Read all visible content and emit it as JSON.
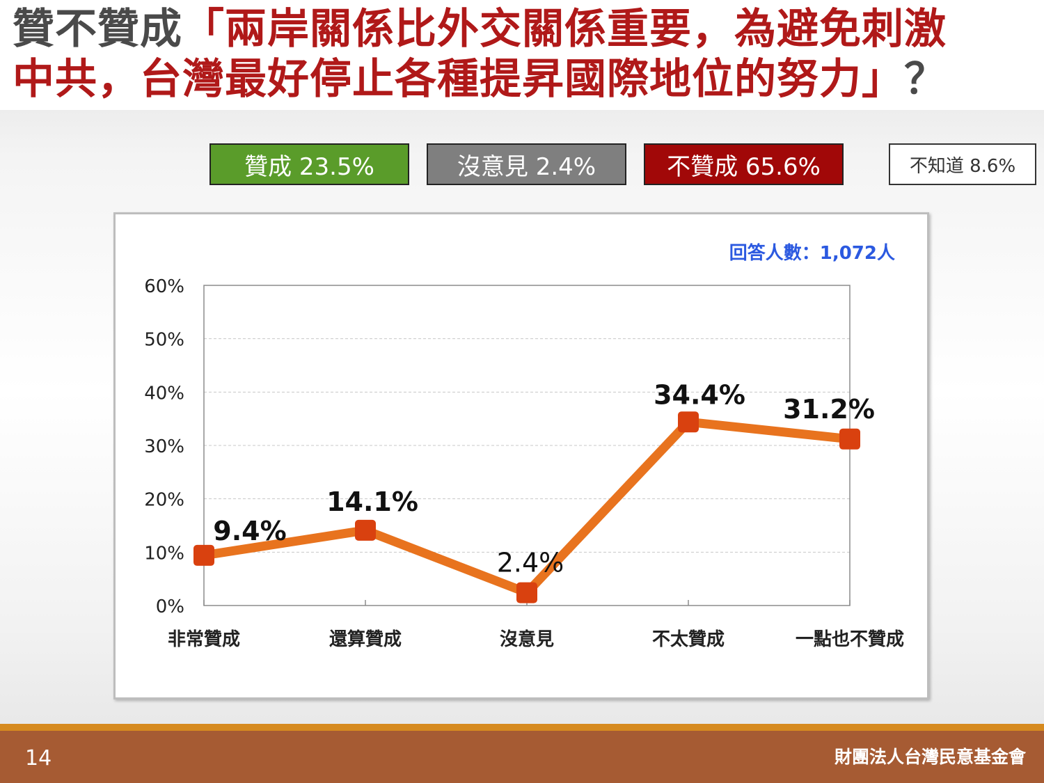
{
  "title": {
    "prefix": "贊不贊成",
    "quote_line1": "「兩岸關係比外交關係重要，為避免刺激",
    "quote_line2": "中共，台灣最好停止各種提昇國際地位的努力」？",
    "line2_prefix": "中共，",
    "line2_highlight": "台灣最好停止各種提昇國際地位的努力」",
    "line2_suffix": "？"
  },
  "legend": {
    "agree": "贊成 23.5%",
    "neutral": "沒意見 2.4%",
    "disagree": "不贊成 65.6%",
    "unknown": "不知道 8.6%"
  },
  "colors": {
    "agree": "#5a9c2a",
    "neutral": "#7f7f7f",
    "disagree": "#a10808",
    "line": "#e8731e",
    "marker": "#d9410f",
    "sample_text": "#2b59e0"
  },
  "sample_size": "回答人數：1,072人",
  "chart_data": {
    "type": "line",
    "categories": [
      "非常贊成",
      "還算贊成",
      "沒意見",
      "不太贊成",
      "一點也不贊成"
    ],
    "series": [
      {
        "values": [
          9.4,
          14.1,
          2.4,
          34.4,
          31.2
        ]
      }
    ],
    "data_labels": [
      "9.4%",
      "14.1%",
      "2.4%",
      "34.4%",
      "31.2%"
    ],
    "y_ticks": [
      "0%",
      "10%",
      "20%",
      "30%",
      "40%",
      "50%",
      "60%"
    ],
    "ylim": [
      0,
      60
    ],
    "grid": true,
    "title": "",
    "xlabel": "",
    "ylabel": ""
  },
  "footer": {
    "page_number": "14",
    "organization": "財團法人台灣民意基金會"
  }
}
